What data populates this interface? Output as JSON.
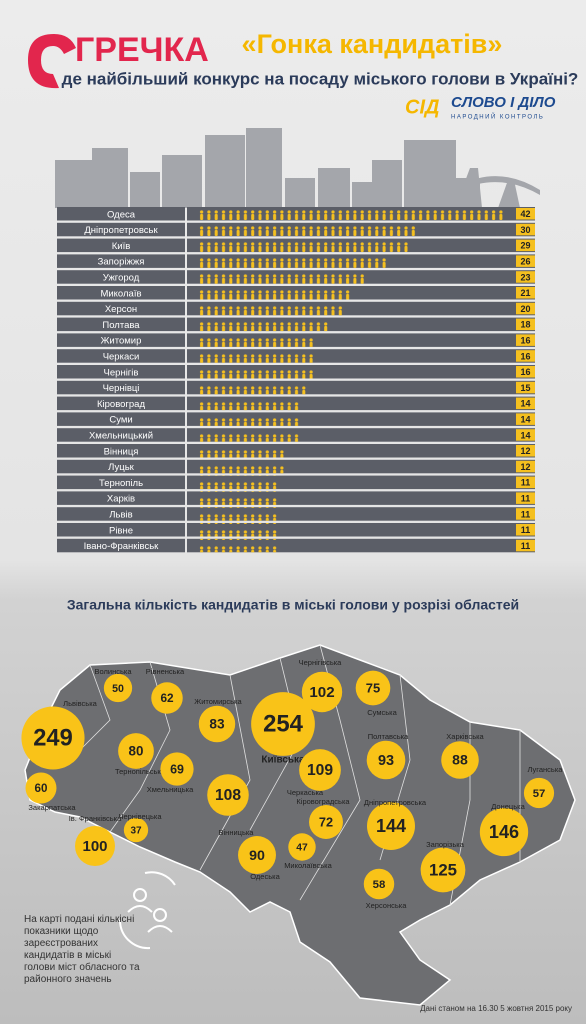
{
  "header": {
    "brand": "ГРЕЧКА",
    "title": "«Гонка кандидатів»",
    "subtitle": "де найбільший конкурс на посаду міського голови в Україні?",
    "partner_logo": "СІД",
    "partner_name": "СЛОВО І ДІЛО",
    "partner_tagline": "НАРОДНИЙ КОНТРОЛЬ"
  },
  "chart_data": {
    "type": "bar",
    "orientation": "horizontal",
    "categories": [
      "Одеса",
      "Дніпропетровськ",
      "Київ",
      "Запоріжжя",
      "Ужгород",
      "Миколаїв",
      "Херсон",
      "Полтава",
      "Житомир",
      "Черкаси",
      "Чернігів",
      "Чернівці",
      "Кіровоград",
      "Суми",
      "Хмельницький",
      "Вінниця",
      "Луцьк",
      "Тернопіль",
      "Харків",
      "Львів",
      "Рівне",
      "Івано-Франківськ"
    ],
    "values": [
      42,
      30,
      29,
      26,
      23,
      21,
      20,
      18,
      16,
      16,
      16,
      15,
      14,
      14,
      14,
      12,
      12,
      11,
      11,
      11,
      11,
      11
    ],
    "color": "#f5c01f",
    "row_color": "#5b5e67"
  },
  "map": {
    "title": "Загальна кількість кандидатів в міські голови у розрізі областей",
    "regions": [
      {
        "name": "Волинська",
        "value": 50
      },
      {
        "name": "Рівненська",
        "value": 62
      },
      {
        "name": "Житомирська",
        "value": 83
      },
      {
        "name": "Київська",
        "value": 254
      },
      {
        "name": "Чернігівська",
        "value": 102
      },
      {
        "name": "Сумська",
        "value": 75
      },
      {
        "name": "Львівська",
        "value": 249
      },
      {
        "name": "Тернопільська",
        "value": 80
      },
      {
        "name": "Хмельницька",
        "value": 69
      },
      {
        "name": "Закарпатська",
        "value": 60
      },
      {
        "name": "Ів. Франківська",
        "value": 100
      },
      {
        "name": "Чернівецька",
        "value": 37
      },
      {
        "name": "Вінницька",
        "value": 108
      },
      {
        "name": "Черкаська",
        "value": 109
      },
      {
        "name": "Полтавська",
        "value": 93
      },
      {
        "name": "Харківська",
        "value": 88
      },
      {
        "name": "Луганська",
        "value": 57
      },
      {
        "name": "Кіровоградська",
        "value": 72
      },
      {
        "name": "Дніпропетровська",
        "value": 144
      },
      {
        "name": "Донецька",
        "value": 146
      },
      {
        "name": "Одеська",
        "value": 90
      },
      {
        "name": "Миколаївська",
        "value": 47
      },
      {
        "name": "Запорізька",
        "value": 125
      },
      {
        "name": "Херсонська",
        "value": 58
      }
    ],
    "bubble_color": "#f9c318",
    "note": "На карті подані кількісні показники щодо зареєстрованих кандидатів в міські голови міст обласного та районного значень",
    "footer": "Дані станом на 16.30 5 жовтня 2015 року"
  }
}
